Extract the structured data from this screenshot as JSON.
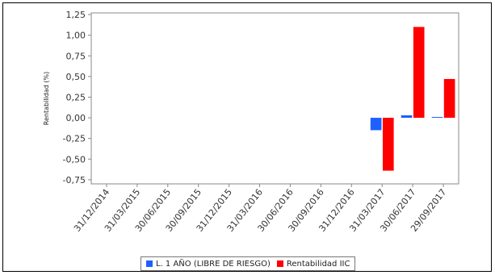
{
  "chart_data": {
    "type": "bar",
    "ylabel": "Rentabilidad (%)",
    "xlabel": "",
    "ylim": [
      -0.8,
      1.27
    ],
    "yticks": [
      -0.75,
      -0.5,
      -0.25,
      0.0,
      0.25,
      0.5,
      0.75,
      1.0,
      1.25
    ],
    "ytick_labels": [
      "-0,75",
      "-0,50",
      "-0,25",
      "0,00",
      "0,25",
      "0,50",
      "0,75",
      "1,00",
      "1,25"
    ],
    "categories": [
      "31/12/2014",
      "31/03/2015",
      "30/06/2015",
      "30/09/2015",
      "31/12/2015",
      "31/03/2016",
      "30/06/2016",
      "30/09/2016",
      "31/12/2016",
      "31/03/2017",
      "30/06/2017",
      "29/09/2017"
    ],
    "series": [
      {
        "name": "L. 1 AÑO (LIBRE DE RIESGO)",
        "color": "#1f5fff",
        "values": [
          null,
          null,
          null,
          null,
          null,
          null,
          null,
          null,
          null,
          -0.15,
          0.03,
          0.01
        ]
      },
      {
        "name": "Rentabilidad IIC",
        "color": "#ff0000",
        "values": [
          null,
          null,
          null,
          null,
          null,
          null,
          null,
          null,
          null,
          -0.64,
          1.1,
          0.47
        ]
      }
    ],
    "grid": false,
    "legend": "bottom"
  }
}
